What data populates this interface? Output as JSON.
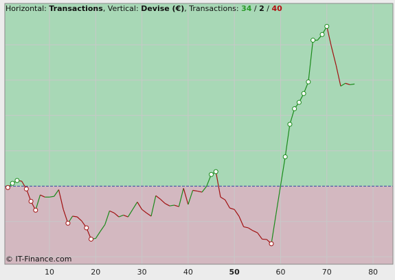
{
  "chart_data": {
    "type": "line",
    "caption": [
      {
        "text": "Horizontal: ",
        "bold": false,
        "color": "#111111"
      },
      {
        "text": "Transactions",
        "bold": true,
        "color": "#111111"
      },
      {
        "text": ", Vertical: ",
        "bold": false,
        "color": "#111111"
      },
      {
        "text": "Devise (€)",
        "bold": true,
        "color": "#111111"
      },
      {
        "text": ", Transactions: ",
        "bold": false,
        "color": "#111111"
      },
      {
        "text": "34",
        "bold": true,
        "color": "#2a9a2a"
      },
      {
        "text": " / ",
        "bold": false,
        "color": "#111111"
      },
      {
        "text": "2",
        "bold": true,
        "color": "#111111"
      },
      {
        "text": " / ",
        "bold": false,
        "color": "#111111"
      },
      {
        "text": "40",
        "bold": true,
        "color": "#b01010"
      }
    ],
    "watermark": "© IT-Finance.com",
    "x": [
      1,
      2,
      3,
      4,
      5,
      6,
      7,
      8,
      9,
      10,
      11,
      12,
      13,
      14,
      15,
      16,
      17,
      18,
      19,
      20,
      21,
      22,
      23,
      24,
      25,
      26,
      27,
      28,
      29,
      30,
      31,
      32,
      33,
      34,
      35,
      36,
      37,
      38,
      39,
      40,
      41,
      42,
      43,
      44,
      45,
      46,
      47,
      48,
      49,
      50,
      51,
      52,
      53,
      54,
      55,
      56,
      57,
      58,
      59,
      60,
      61,
      62,
      63,
      64,
      65,
      66,
      67,
      68,
      69,
      70,
      71,
      72,
      73,
      74,
      75,
      76
    ],
    "values": [
      -0.04,
      0.08,
      0.16,
      0.14,
      -0.08,
      -0.43,
      -0.68,
      -0.25,
      -0.31,
      -0.31,
      -0.29,
      -0.1,
      -0.66,
      -1.05,
      -0.85,
      -0.87,
      -0.99,
      -1.18,
      -1.5,
      -1.48,
      -1.28,
      -1.09,
      -0.7,
      -0.76,
      -0.87,
      -0.82,
      -0.87,
      -0.66,
      -0.45,
      -0.66,
      -0.76,
      -0.85,
      -0.27,
      -0.37,
      -0.49,
      -0.56,
      -0.54,
      -0.58,
      -0.06,
      -0.52,
      -0.12,
      -0.14,
      -0.17,
      0,
      0.33,
      0.41,
      -0.31,
      -0.39,
      -0.62,
      -0.66,
      -0.85,
      -1.15,
      -1.18,
      -1.26,
      -1.32,
      -1.5,
      -1.51,
      -1.63,
      -0.8,
      0.02,
      0.83,
      1.75,
      2.19,
      2.37,
      2.62,
      2.95,
      4.13,
      4.13,
      4.29,
      4.52,
      3.94,
      3.42,
      2.83,
      2.91,
      2.87,
      2.89
    ],
    "markers": [
      1,
      2,
      3,
      5,
      6,
      7,
      14,
      18,
      19,
      45,
      46,
      58,
      61,
      62,
      63,
      64,
      65,
      66,
      67,
      69,
      70
    ],
    "up_color": "#1a8a1a",
    "down_color": "#a01010",
    "xlim": [
      0.34,
      84.3
    ],
    "ylim": [
      -2.21,
      5.17
    ],
    "xticks": [
      10,
      20,
      30,
      40,
      50,
      60,
      70,
      80
    ],
    "bold_xtick": 50,
    "ygrid": [
      -2,
      -1,
      1,
      2,
      3,
      4
    ],
    "baseline": 0,
    "above_color": "#a8d8b6",
    "below_color": "#d3b8c0"
  }
}
